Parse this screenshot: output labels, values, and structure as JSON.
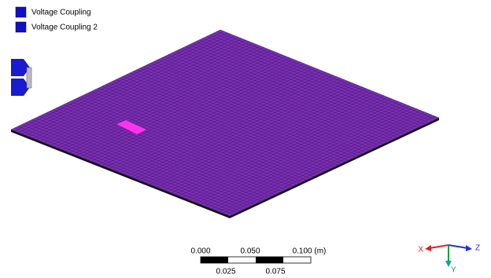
{
  "legend": {
    "items": [
      "Voltage Coupling",
      "Voltage Coupling 2"
    ]
  },
  "scale_bar": {
    "top_labels": [
      "0.000",
      "0.050",
      "0.100 (m)"
    ],
    "bottom_labels": [
      "0.025",
      "0.075"
    ]
  },
  "axes": {
    "x": "X",
    "y": "Y",
    "z": "Z"
  }
}
